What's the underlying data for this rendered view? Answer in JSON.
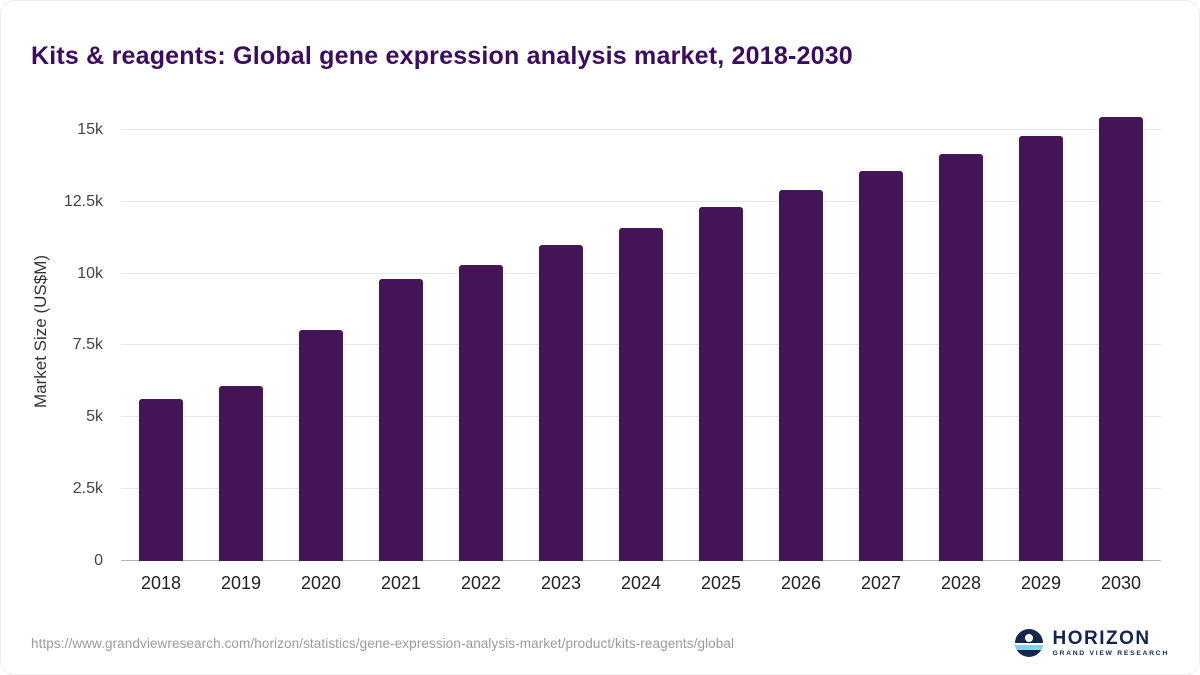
{
  "title": "Kits & reagents: Global gene expression analysis market, 2018-2030",
  "footer": {
    "source_url": "https://www.grandviewresearch.com/horizon/statistics/gene-expression-analysis-market/product/kits-reagents/global",
    "logo_name": "HORIZON",
    "logo_subtitle": "GRAND VIEW RESEARCH"
  },
  "colors": {
    "bar": "#461558",
    "title": "#3c0d5e",
    "grid": "#e8e8e8",
    "axis_text": "#444444",
    "footer_text": "#9b9b9b",
    "logo_navy": "#16254e",
    "logo_blue": "#7fd4f0"
  },
  "chart_data": {
    "type": "bar",
    "title": "Kits & reagents: Global gene expression analysis market, 2018-2030",
    "xlabel": "",
    "ylabel": "Market Size (US$M)",
    "categories": [
      "2018",
      "2019",
      "2020",
      "2021",
      "2022",
      "2023",
      "2024",
      "2025",
      "2026",
      "2027",
      "2028",
      "2029",
      "2030"
    ],
    "values": [
      5650,
      6100,
      8050,
      9800,
      10300,
      11000,
      11600,
      12300,
      12900,
      13550,
      14150,
      14800,
      15450
    ],
    "ylim": [
      0,
      16000
    ],
    "yticks": [
      {
        "value": 0,
        "label": "0"
      },
      {
        "value": 2500,
        "label": "2.5k"
      },
      {
        "value": 5000,
        "label": "5k"
      },
      {
        "value": 7500,
        "label": "7.5k"
      },
      {
        "value": 10000,
        "label": "10k"
      },
      {
        "value": 12500,
        "label": "12.5k"
      },
      {
        "value": 15000,
        "label": "15k"
      }
    ],
    "grid": true,
    "legend": false
  }
}
